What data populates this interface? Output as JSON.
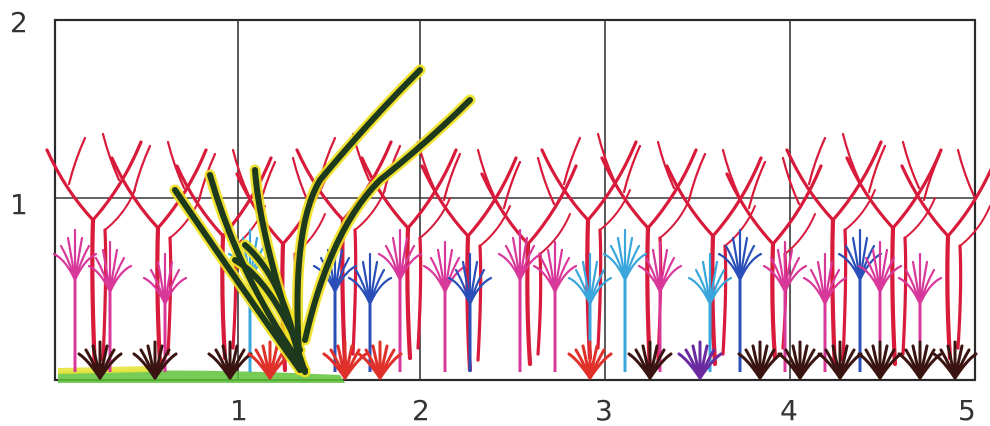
{
  "x_axis_labels": [
    "1",
    "2",
    "3",
    "4",
    "5"
  ],
  "y_axis_labels": [
    "1",
    "2"
  ],
  "colors": {
    "red_tree": "#d81b3a",
    "magenta_plant": "#d8389a",
    "blue_plant": "#2a4fb8",
    "light_blue_plant": "#3aa6dc",
    "dark_shrub": "#3a1410",
    "red_shrub": "#e0302a",
    "purple_shrub": "#6a2aa0",
    "dark_green_plant": "#1e3a1c",
    "yellow_outline": "#f0e020",
    "ground_green": "#5fc23a",
    "ground_yellow": "#e6e43a"
  },
  "icons": [
    "red-branching-tree",
    "magenta-plant",
    "blue-plant",
    "light-blue-plant",
    "dark-shrub",
    "green-foreground-plant"
  ]
}
